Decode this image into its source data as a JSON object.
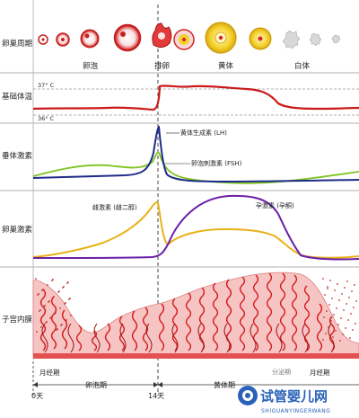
{
  "row_labels": {
    "ovarian_cycle": "卵巢周期",
    "basal_temp": "基础体温",
    "pituitary_hormones": "垂体激素",
    "ovarian_hormones": "卵巢激素",
    "endometrium": "子宫内膜"
  },
  "phases": {
    "follicle": "卵泡",
    "ovulation": "排卵",
    "corpus_luteum": "黄体",
    "corpus_albicans": "白体"
  },
  "temperature": {
    "high_label": "37° C",
    "low_label": "36° C",
    "line_color": "#cc1a1a"
  },
  "pituitary": {
    "lh_label": "黄体生成素 (LH)",
    "fsh_label": "卵泡刺激素 (FSH)",
    "lh_color": "#1f2b8a",
    "fsh_color": "#7dc41f"
  },
  "ovarian": {
    "estrogen_label": "雌激素 (雌二醇)",
    "progesterone_label": "孕激素 (孕酮)",
    "estrogen_color": "#e8b21a",
    "progesterone_color": "#6a1fa8"
  },
  "endometrium": {
    "menses_left": "月经期",
    "menses_right": "月经期",
    "tissue_color": "#f7c4c4",
    "gland_color": "#d41a1a"
  },
  "timeline": {
    "day0": "0天",
    "day14": "14天",
    "follicular_phase": "卵泡期",
    "luteal_phase": "黄体期",
    "secretory_phase": "分泌期"
  },
  "watermark": {
    "text": "试管婴儿网",
    "sub": "SHIGUANYINGERWANG"
  }
}
